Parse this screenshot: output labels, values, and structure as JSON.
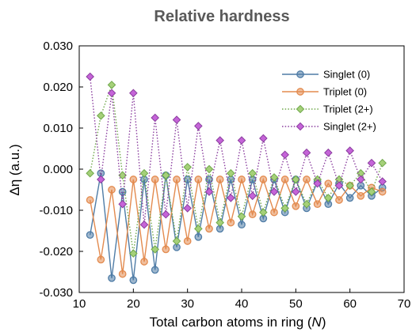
{
  "chart_data": {
    "type": "line",
    "title": "Relative hardness",
    "xlabel_prefix": "Total carbon atoms in ring (",
    "xlabel_var": "N",
    "xlabel_suffix": ")",
    "ylabel": "Δη (a.u.)",
    "xlim": [
      10,
      70
    ],
    "ylim": [
      -0.03,
      0.03
    ],
    "x_ticks": [
      "10",
      "20",
      "30",
      "40",
      "50",
      "60",
      "70"
    ],
    "y_ticks": [
      "0.030",
      "0.020",
      "0.010",
      "0.000",
      "-0.010",
      "-0.020",
      "-0.030"
    ],
    "x_tick_values": [
      10,
      20,
      30,
      40,
      50,
      60,
      70
    ],
    "y_tick_values": [
      0.03,
      0.02,
      0.01,
      0.0,
      -0.01,
      -0.02,
      -0.03
    ],
    "grid": false,
    "legend_position": "top-right",
    "x": [
      12,
      14,
      16,
      18,
      20,
      22,
      24,
      26,
      28,
      30,
      32,
      34,
      36,
      38,
      40,
      42,
      44,
      46,
      48,
      50,
      52,
      54,
      56,
      58,
      60,
      62,
      64,
      66
    ],
    "series": [
      {
        "name": "Singlet (0)",
        "color": "#4f7ca6",
        "marker": "circle",
        "dash": "solid",
        "values": [
          -0.016,
          -0.001,
          -0.0265,
          -0.0055,
          -0.027,
          -0.0025,
          -0.0245,
          -0.0015,
          -0.019,
          -0.0025,
          -0.0165,
          -0.0025,
          -0.0145,
          -0.0025,
          -0.0135,
          -0.0025,
          -0.012,
          -0.0025,
          -0.0105,
          -0.0025,
          -0.0095,
          -0.003,
          -0.0085,
          -0.0035,
          -0.007,
          -0.004,
          -0.0065,
          -0.0045
        ]
      },
      {
        "name": "Triplet (0)",
        "color": "#e38b4f",
        "marker": "circle",
        "dash": "solid",
        "values": [
          -0.0075,
          -0.022,
          -0.005,
          -0.0255,
          -0.0025,
          -0.0225,
          -0.0025,
          -0.0195,
          -0.0025,
          -0.0175,
          -0.0025,
          -0.0145,
          -0.0025,
          -0.013,
          -0.0025,
          -0.011,
          -0.0025,
          -0.0105,
          -0.0025,
          -0.009,
          -0.0025,
          -0.0085,
          -0.0035,
          -0.0075,
          -0.004,
          -0.0065,
          -0.0045,
          -0.0055
        ]
      },
      {
        "name": "Triplet (2+)",
        "color": "#6fa84a",
        "marker": "diamond",
        "markerFill": "#a5d079",
        "dash": "dotted",
        "values": [
          -0.001,
          0.013,
          0.0205,
          -0.0015,
          -0.0205,
          -0.001,
          -0.0195,
          -0.0015,
          -0.0175,
          0.0005,
          -0.0145,
          0.0,
          -0.013,
          -0.001,
          -0.0115,
          -0.001,
          -0.0105,
          -0.002,
          -0.0095,
          -0.0025,
          -0.0085,
          -0.0025,
          -0.007,
          -0.0025,
          -0.004,
          -0.001,
          -0.0055,
          0.0015
        ]
      },
      {
        "name": "Singlet (2+)",
        "color": "#8a3d9e",
        "marker": "diamond",
        "markerFill": "#c564d8",
        "dash": "dotted",
        "values": [
          0.0225,
          -0.0025,
          0.0185,
          -0.0085,
          0.0185,
          -0.0135,
          0.0125,
          -0.011,
          0.012,
          -0.0095,
          0.0105,
          -0.0055,
          0.007,
          -0.007,
          0.007,
          -0.0065,
          0.0075,
          -0.0055,
          0.0035,
          -0.0055,
          0.004,
          -0.0035,
          0.004,
          -0.004,
          0.0045,
          -0.0025,
          0.0015,
          -0.003
        ]
      }
    ]
  }
}
